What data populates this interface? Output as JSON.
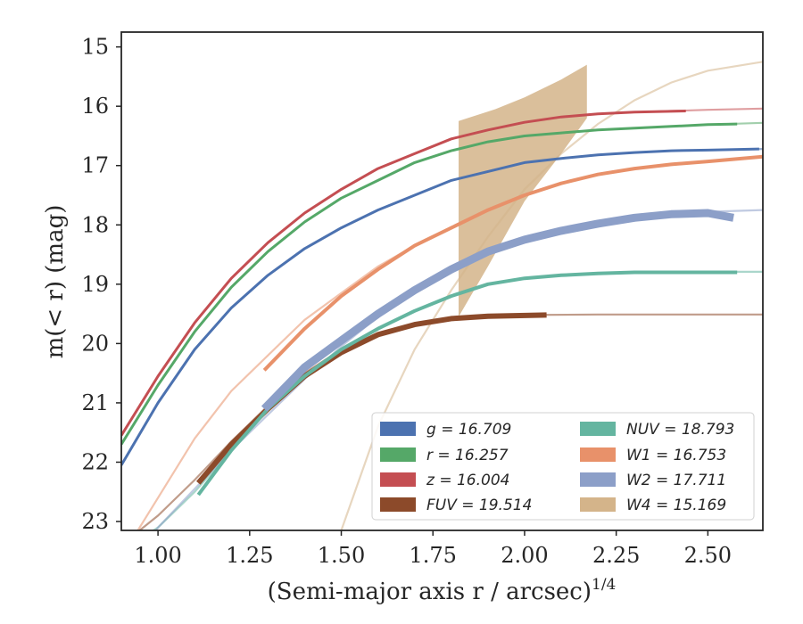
{
  "chart_data": {
    "type": "line",
    "title": "",
    "xlabel": "(Semi-major axis r / arcsec)",
    "xlabel_superscript": "1/4",
    "ylabel": "m(< r) (mag)",
    "xlim": [
      0.9,
      2.65
    ],
    "ylim": [
      23.15,
      14.75
    ],
    "y_inverted": true,
    "x_ticks": [
      1.0,
      1.25,
      1.5,
      1.75,
      2.0,
      2.25,
      2.5
    ],
    "x_tick_labels": [
      "1.00",
      "1.25",
      "1.50",
      "1.75",
      "2.00",
      "2.25",
      "2.50"
    ],
    "y_ticks": [
      15,
      16,
      17,
      18,
      19,
      20,
      21,
      22,
      23
    ],
    "y_tick_labels": [
      "15",
      "16",
      "17",
      "18",
      "19",
      "20",
      "21",
      "22",
      "23"
    ],
    "grid": false,
    "legend_position": "lower-right",
    "legend": [
      [
        "g = 16.709",
        "NUV = 18.793"
      ],
      [
        "r = 16.257",
        "W1 = 16.753"
      ],
      [
        "z = 16.004",
        "W2 = 17.711"
      ],
      [
        "FUV = 19.514",
        "W4 = 15.169"
      ]
    ],
    "series": [
      {
        "name": "g = 16.709",
        "color": "#4c72b0",
        "model": [
          [
            0.9,
            22.05
          ],
          [
            1.0,
            21.0
          ],
          [
            1.1,
            20.1
          ],
          [
            1.2,
            19.4
          ],
          [
            1.3,
            18.85
          ],
          [
            1.4,
            18.4
          ],
          [
            1.5,
            18.05
          ],
          [
            1.6,
            17.75
          ],
          [
            1.7,
            17.5
          ],
          [
            1.8,
            17.25
          ],
          [
            1.9,
            17.1
          ],
          [
            2.0,
            16.95
          ],
          [
            2.1,
            16.88
          ],
          [
            2.2,
            16.82
          ],
          [
            2.3,
            16.78
          ],
          [
            2.4,
            16.75
          ],
          [
            2.5,
            16.74
          ],
          [
            2.65,
            16.72
          ]
        ],
        "data": [
          [
            0.9,
            22.05
          ],
          [
            1.0,
            21.0
          ],
          [
            1.1,
            20.1
          ],
          [
            1.2,
            19.4
          ],
          [
            1.3,
            18.85
          ],
          [
            1.4,
            18.4
          ],
          [
            1.5,
            18.05
          ],
          [
            1.6,
            17.75
          ],
          [
            1.7,
            17.5
          ],
          [
            1.8,
            17.25
          ],
          [
            1.9,
            17.1
          ],
          [
            2.0,
            16.95
          ],
          [
            2.1,
            16.88
          ],
          [
            2.2,
            16.82
          ],
          [
            2.3,
            16.78
          ],
          [
            2.4,
            16.75
          ],
          [
            2.5,
            16.74
          ],
          [
            2.64,
            16.72
          ]
        ]
      },
      {
        "name": "r = 16.257",
        "color": "#55a868",
        "model": [
          [
            0.9,
            21.7
          ],
          [
            1.0,
            20.7
          ],
          [
            1.1,
            19.8
          ],
          [
            1.2,
            19.05
          ],
          [
            1.3,
            18.45
          ],
          [
            1.4,
            17.95
          ],
          [
            1.5,
            17.55
          ],
          [
            1.6,
            17.25
          ],
          [
            1.7,
            16.95
          ],
          [
            1.8,
            16.75
          ],
          [
            1.9,
            16.6
          ],
          [
            2.0,
            16.5
          ],
          [
            2.1,
            16.45
          ],
          [
            2.2,
            16.4
          ],
          [
            2.3,
            16.37
          ],
          [
            2.4,
            16.34
          ],
          [
            2.5,
            16.31
          ],
          [
            2.65,
            16.28
          ]
        ],
        "data": [
          [
            0.9,
            21.7
          ],
          [
            1.0,
            20.7
          ],
          [
            1.1,
            19.8
          ],
          [
            1.2,
            19.05
          ],
          [
            1.3,
            18.45
          ],
          [
            1.4,
            17.95
          ],
          [
            1.5,
            17.55
          ],
          [
            1.6,
            17.25
          ],
          [
            1.7,
            16.95
          ],
          [
            1.8,
            16.75
          ],
          [
            1.9,
            16.6
          ],
          [
            2.0,
            16.5
          ],
          [
            2.1,
            16.45
          ],
          [
            2.2,
            16.4
          ],
          [
            2.3,
            16.37
          ],
          [
            2.4,
            16.34
          ],
          [
            2.5,
            16.31
          ],
          [
            2.58,
            16.3
          ]
        ]
      },
      {
        "name": "z = 16.004",
        "color": "#c44e52",
        "model": [
          [
            0.9,
            21.55
          ],
          [
            1.0,
            20.55
          ],
          [
            1.1,
            19.65
          ],
          [
            1.2,
            18.9
          ],
          [
            1.3,
            18.3
          ],
          [
            1.4,
            17.8
          ],
          [
            1.5,
            17.4
          ],
          [
            1.6,
            17.05
          ],
          [
            1.7,
            16.8
          ],
          [
            1.8,
            16.55
          ],
          [
            1.9,
            16.4
          ],
          [
            2.0,
            16.27
          ],
          [
            2.1,
            16.18
          ],
          [
            2.2,
            16.13
          ],
          [
            2.3,
            16.1
          ],
          [
            2.4,
            16.08
          ],
          [
            2.5,
            16.06
          ],
          [
            2.65,
            16.04
          ]
        ],
        "data": [
          [
            0.9,
            21.55
          ],
          [
            1.0,
            20.55
          ],
          [
            1.1,
            19.65
          ],
          [
            1.2,
            18.9
          ],
          [
            1.3,
            18.3
          ],
          [
            1.4,
            17.8
          ],
          [
            1.5,
            17.4
          ],
          [
            1.6,
            17.05
          ],
          [
            1.7,
            16.8
          ],
          [
            1.8,
            16.55
          ],
          [
            1.9,
            16.4
          ],
          [
            2.0,
            16.27
          ],
          [
            2.1,
            16.18
          ],
          [
            2.2,
            16.13
          ],
          [
            2.3,
            16.1
          ],
          [
            2.44,
            16.08
          ]
        ]
      },
      {
        "name": "FUV = 19.514",
        "color": "#8c4a2a",
        "model": [
          [
            0.95,
            23.15
          ],
          [
            1.0,
            22.9
          ],
          [
            1.1,
            22.3
          ],
          [
            1.2,
            21.65
          ],
          [
            1.3,
            21.05
          ],
          [
            1.4,
            20.5
          ],
          [
            1.5,
            20.1
          ],
          [
            1.6,
            19.85
          ],
          [
            1.7,
            19.68
          ],
          [
            1.8,
            19.58
          ],
          [
            1.9,
            19.54
          ],
          [
            2.0,
            19.52
          ],
          [
            2.2,
            19.51
          ],
          [
            2.65,
            19.51
          ]
        ],
        "data": [
          [
            1.11,
            22.35
          ],
          [
            1.2,
            21.7
          ],
          [
            1.3,
            21.1
          ],
          [
            1.4,
            20.55
          ],
          [
            1.5,
            20.15
          ],
          [
            1.6,
            19.85
          ],
          [
            1.7,
            19.68
          ],
          [
            1.8,
            19.58
          ],
          [
            1.9,
            19.54
          ],
          [
            2.06,
            19.52
          ]
        ]
      },
      {
        "name": "NUV = 18.793",
        "color": "#64b5a0",
        "model": [
          [
            0.95,
            23.3
          ],
          [
            1.0,
            23.1
          ],
          [
            1.1,
            22.5
          ],
          [
            1.2,
            21.8
          ],
          [
            1.3,
            21.1
          ],
          [
            1.4,
            20.55
          ],
          [
            1.5,
            20.1
          ],
          [
            1.6,
            19.75
          ],
          [
            1.7,
            19.45
          ],
          [
            1.8,
            19.2
          ],
          [
            1.9,
            19.0
          ],
          [
            2.0,
            18.9
          ],
          [
            2.1,
            18.85
          ],
          [
            2.2,
            18.82
          ],
          [
            2.3,
            18.8
          ],
          [
            2.5,
            18.79
          ],
          [
            2.65,
            18.79
          ]
        ],
        "data": [
          [
            1.11,
            22.55
          ],
          [
            1.2,
            21.8
          ],
          [
            1.3,
            21.1
          ],
          [
            1.4,
            20.55
          ],
          [
            1.5,
            20.1
          ],
          [
            1.6,
            19.75
          ],
          [
            1.7,
            19.45
          ],
          [
            1.8,
            19.2
          ],
          [
            1.9,
            19.0
          ],
          [
            2.0,
            18.9
          ],
          [
            2.1,
            18.85
          ],
          [
            2.2,
            18.82
          ],
          [
            2.3,
            18.8
          ],
          [
            2.58,
            18.8
          ]
        ]
      },
      {
        "name": "W1 = 16.753",
        "color": "#e8916a",
        "model": [
          [
            0.9,
            23.6
          ],
          [
            1.0,
            22.6
          ],
          [
            1.1,
            21.6
          ],
          [
            1.2,
            20.8
          ],
          [
            1.3,
            20.2
          ],
          [
            1.4,
            19.6
          ],
          [
            1.5,
            19.15
          ],
          [
            1.6,
            18.7
          ],
          [
            1.7,
            18.35
          ],
          [
            1.8,
            18.05
          ],
          [
            1.9,
            17.75
          ],
          [
            2.0,
            17.5
          ],
          [
            2.1,
            17.3
          ],
          [
            2.2,
            17.15
          ],
          [
            2.3,
            17.05
          ],
          [
            2.4,
            16.98
          ],
          [
            2.5,
            16.93
          ],
          [
            2.65,
            16.85
          ]
        ],
        "data": [
          [
            1.29,
            20.45
          ],
          [
            1.4,
            19.75
          ],
          [
            1.5,
            19.2
          ],
          [
            1.6,
            18.75
          ],
          [
            1.7,
            18.35
          ],
          [
            1.8,
            18.05
          ],
          [
            1.9,
            17.75
          ],
          [
            2.0,
            17.5
          ],
          [
            2.1,
            17.3
          ],
          [
            2.2,
            17.15
          ],
          [
            2.3,
            17.05
          ],
          [
            2.4,
            16.98
          ],
          [
            2.5,
            16.93
          ],
          [
            2.65,
            16.85
          ]
        ]
      },
      {
        "name": "W2 = 17.711",
        "color": "#8c9fc8",
        "model": [
          [
            0.95,
            23.6
          ],
          [
            1.0,
            23.1
          ],
          [
            1.1,
            22.45
          ],
          [
            1.2,
            21.8
          ],
          [
            1.3,
            21.2
          ],
          [
            1.4,
            20.6
          ],
          [
            1.5,
            20.05
          ],
          [
            1.6,
            19.55
          ],
          [
            1.7,
            19.1
          ],
          [
            1.8,
            18.75
          ],
          [
            1.9,
            18.45
          ],
          [
            2.0,
            18.25
          ],
          [
            2.1,
            18.1
          ],
          [
            2.2,
            17.98
          ],
          [
            2.3,
            17.88
          ],
          [
            2.4,
            17.82
          ],
          [
            2.5,
            17.78
          ],
          [
            2.65,
            17.75
          ]
        ],
        "data": [
          [
            1.29,
            21.1
          ],
          [
            1.4,
            20.4
          ],
          [
            1.5,
            19.95
          ],
          [
            1.6,
            19.5
          ],
          [
            1.7,
            19.1
          ],
          [
            1.8,
            18.75
          ],
          [
            1.9,
            18.45
          ],
          [
            2.0,
            18.25
          ],
          [
            2.1,
            18.1
          ],
          [
            2.2,
            17.98
          ],
          [
            2.3,
            17.88
          ],
          [
            2.4,
            17.82
          ],
          [
            2.5,
            17.8
          ],
          [
            2.57,
            17.88
          ]
        ]
      },
      {
        "name": "W4 = 15.169",
        "color": "#d4b48a",
        "model": [
          [
            1.5,
            23.15
          ],
          [
            1.6,
            21.4
          ],
          [
            1.7,
            20.1
          ],
          [
            1.8,
            19.1
          ],
          [
            1.9,
            18.2
          ],
          [
            2.0,
            17.4
          ],
          [
            2.1,
            16.8
          ],
          [
            2.2,
            16.3
          ],
          [
            2.3,
            15.9
          ],
          [
            2.4,
            15.6
          ],
          [
            2.5,
            15.4
          ],
          [
            2.65,
            15.25
          ]
        ],
        "band_upper": [
          [
            1.82,
            16.25
          ],
          [
            1.92,
            16.05
          ],
          [
            2.0,
            15.85
          ],
          [
            2.1,
            15.55
          ],
          [
            2.17,
            15.3
          ]
        ],
        "band_lower": [
          [
            1.82,
            19.55
          ],
          [
            1.9,
            18.7
          ],
          [
            2.0,
            17.6
          ],
          [
            2.1,
            16.8
          ],
          [
            2.17,
            16.2
          ]
        ]
      }
    ]
  }
}
